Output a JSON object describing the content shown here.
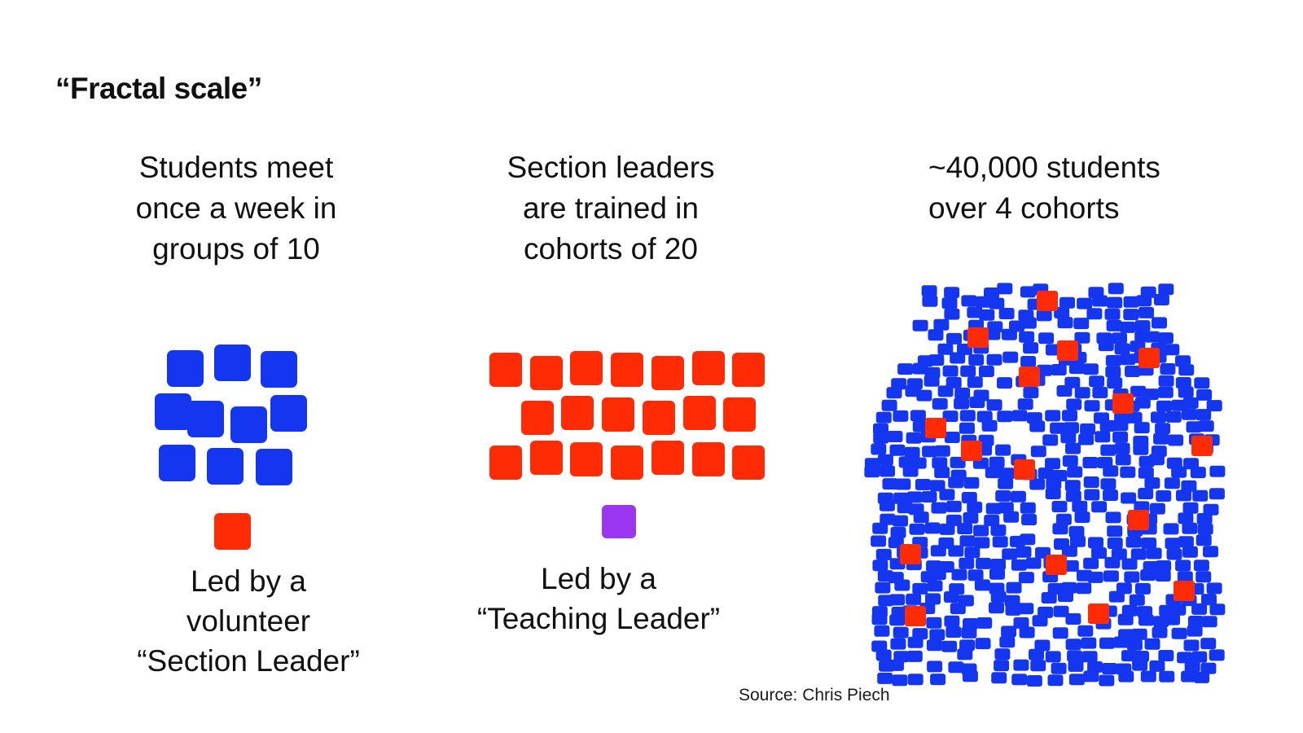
{
  "title": "“Fractal scale”",
  "colors": {
    "student": "#1436f0",
    "section_leader": "#ff2b05",
    "teaching_leader": "#9a35f0"
  },
  "panels": [
    {
      "heading": [
        "Students meet",
        "once a week in",
        "groups of 10"
      ],
      "caption": [
        "Led by a",
        "volunteer",
        "“Section Leader”"
      ],
      "group_size": 10,
      "leader_count": 1
    },
    {
      "heading": [
        "Section leaders",
        "are trained in",
        "cohorts of 20"
      ],
      "caption": [
        "Led by a",
        "“Teaching Leader”"
      ],
      "group_size": 20,
      "leader_count": 1
    },
    {
      "heading": [
        "~40,000 students",
        "over 4 cohorts"
      ],
      "caption": []
    }
  ],
  "source": "Source: Chris Piech"
}
